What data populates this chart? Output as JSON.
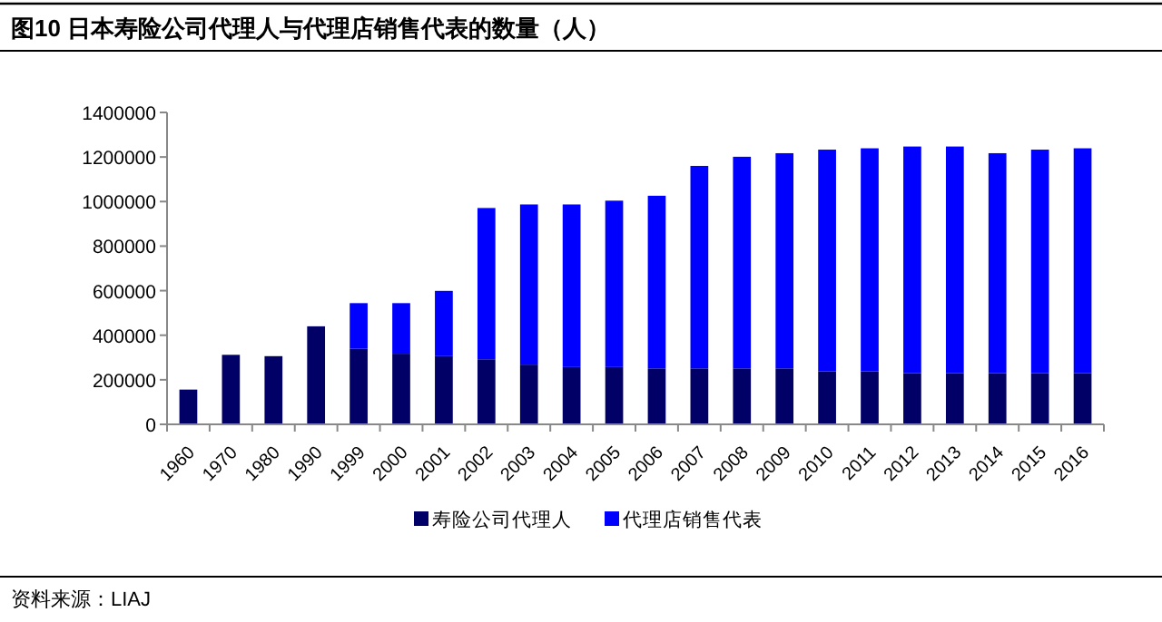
{
  "chart_data": {
    "type": "bar",
    "title": "图10 日本寿险公司代理人与代理店销售代表的数量（人）",
    "stacked": true,
    "categories": [
      "1960",
      "1970",
      "1980",
      "1990",
      "1999",
      "2000",
      "2001",
      "2002",
      "2003",
      "2004",
      "2005",
      "2006",
      "2007",
      "2008",
      "2009",
      "2010",
      "2011",
      "2012",
      "2013",
      "2014",
      "2015",
      "2016"
    ],
    "series": [
      {
        "name": "寿险公司代理人",
        "color": "#000066",
        "values": [
          156000,
          312000,
          306000,
          440000,
          339000,
          317000,
          306000,
          292000,
          268000,
          257000,
          257000,
          251000,
          251000,
          251000,
          251000,
          238000,
          238000,
          230000,
          230000,
          230000,
          230000,
          230000
        ]
      },
      {
        "name": "代理店销售代表",
        "color": "#0000ff",
        "values": [
          0,
          0,
          0,
          0,
          205000,
          227000,
          293000,
          679000,
          719000,
          730000,
          747000,
          775000,
          909000,
          950000,
          966000,
          995000,
          1001000,
          1017000,
          1017000,
          987000,
          1003000,
          1009000
        ]
      }
    ],
    "ylim": [
      0,
      1400000
    ],
    "yticks": [
      0,
      200000,
      400000,
      600000,
      800000,
      1000000,
      1200000,
      1400000
    ],
    "grid": false,
    "legend": "bottom",
    "annotations": [
      "资料来源：LIAJ"
    ]
  }
}
